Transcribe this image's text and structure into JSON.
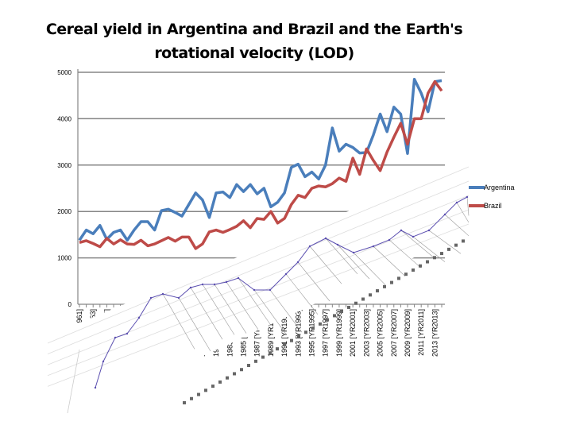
{
  "chart_data": {
    "type": "line",
    "title": "Cereal yield in Argentina and Brazil and the Earth's rotational velocity (LOD)",
    "xlabel": "",
    "ylabel": "",
    "ylim": [
      0,
      5000
    ],
    "yticks": [
      "0",
      "1000",
      "2000",
      "3000",
      "4000",
      "5000"
    ],
    "grid": true,
    "legend_position": "right",
    "x": [
      1961,
      1962,
      1963,
      1964,
      1965,
      1966,
      1967,
      1968,
      1969,
      1970,
      1971,
      1972,
      1973,
      1974,
      1975,
      1976,
      1977,
      1978,
      1979,
      1980,
      1981,
      1982,
      1983,
      1984,
      1985,
      1986,
      1987,
      1988,
      1989,
      1990,
      1991,
      1992,
      1993,
      1994,
      1995,
      1996,
      1997,
      1998,
      1999,
      2000,
      2001,
      2002,
      2003,
      2004,
      2005,
      2006,
      2007,
      2008,
      2009,
      2010,
      2011,
      2012,
      2013,
      2014
    ],
    "xtick_labels": [
      "1961 [YR1961]",
      "1963 [YR1963]",
      "1965 [YR1965]",
      "1967 [YR1967]",
      "1969 [YR1969]",
      "1971 [YR1971]",
      "1973 [YR1973]",
      "1975 [YR1975]",
      "1977 [YR1977]",
      "1979 [YR1979]",
      "1981 [YR1981]",
      "1983 [YR1983]",
      "1985 [YR1985]",
      "1987 [YR1987]",
      "1989 [YR1989]",
      "1991 [YR1991]",
      "1993 [YR1993]",
      "1995 [YR1995]",
      "1997 [YR1997]",
      "1999 [YR1999]",
      "2001 [YR2001]",
      "2003 [YR2003]",
      "2005 [YR2005]",
      "2007 [YR2007]",
      "2009 [YR2009]",
      "2011 [YR2011]",
      "2013 [YR2013]"
    ],
    "series": [
      {
        "name": "Argentina",
        "color": "#4a7ebb",
        "values": [
          1380,
          1600,
          1520,
          1700,
          1400,
          1550,
          1600,
          1380,
          1600,
          1780,
          1780,
          1600,
          2020,
          2050,
          1980,
          1900,
          2150,
          2400,
          2250,
          1870,
          2400,
          2420,
          2300,
          2580,
          2430,
          2580,
          2380,
          2500,
          2100,
          2200,
          2400,
          2950,
          3020,
          2750,
          2850,
          2700,
          3000,
          3800,
          3300,
          3450,
          3380,
          3260,
          3270,
          3650,
          4100,
          3720,
          4250,
          4100,
          3250,
          4850,
          4550,
          4150,
          4800,
          4820
        ]
      },
      {
        "name": "Brazil",
        "color": "#be4b48",
        "values": [
          1330,
          1370,
          1310,
          1240,
          1420,
          1300,
          1390,
          1300,
          1290,
          1380,
          1260,
          1300,
          1370,
          1440,
          1360,
          1450,
          1450,
          1200,
          1300,
          1560,
          1600,
          1550,
          1610,
          1680,
          1800,
          1650,
          1850,
          1830,
          2000,
          1750,
          1850,
          2150,
          2350,
          2300,
          2500,
          2550,
          2530,
          2600,
          2720,
          2650,
          3150,
          2800,
          3350,
          3100,
          2880,
          3280,
          3600,
          3900,
          3450,
          4000,
          4000,
          4550,
          4800,
          4600
        ]
      }
    ]
  }
}
